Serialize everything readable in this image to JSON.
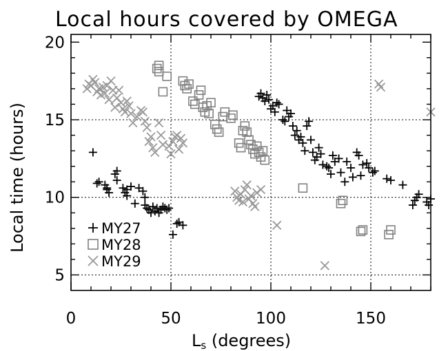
{
  "chart_data": {
    "type": "scatter",
    "title": "Local hours covered by OMEGA",
    "xlabel": "L",
    "xlabel_sub": "s",
    "xlabel_rest": " (degrees)",
    "ylabel": "Local time (hours)",
    "xlim": [
      0,
      180
    ],
    "ylim": [
      4,
      20.5
    ],
    "xticks": [
      0,
      50,
      100,
      150
    ],
    "yticks": [
      5,
      10,
      15,
      20
    ],
    "xgrid": [
      50,
      100,
      150
    ],
    "ygrid": [
      5,
      10,
      15
    ],
    "grid": "dotted",
    "legend_position": "lower-left",
    "series": [
      {
        "name": "MY27",
        "marker": "plus",
        "color": "#000000",
        "points": [
          [
            11,
            12.9
          ],
          [
            14,
            11.0
          ],
          [
            13,
            10.9
          ],
          [
            17,
            10.8
          ],
          [
            18,
            10.6
          ],
          [
            18,
            10.5
          ],
          [
            19,
            10.3
          ],
          [
            22,
            11.5
          ],
          [
            23,
            11.7
          ],
          [
            23,
            11.1
          ],
          [
            26,
            10.6
          ],
          [
            27,
            10.3
          ],
          [
            28,
            10.5
          ],
          [
            28,
            10.1
          ],
          [
            30,
            10.7
          ],
          [
            32,
            9.6
          ],
          [
            34,
            10.6
          ],
          [
            36,
            10.4
          ],
          [
            37,
            10.0
          ],
          [
            37,
            9.5
          ],
          [
            38,
            9.3
          ],
          [
            39,
            9.2
          ],
          [
            40,
            9.0
          ],
          [
            41,
            9.4
          ],
          [
            42,
            9.1
          ],
          [
            43,
            9.3
          ],
          [
            44,
            9.0
          ],
          [
            45,
            9.2
          ],
          [
            46,
            9.4
          ],
          [
            47,
            9.3
          ],
          [
            48,
            9.2
          ],
          [
            49,
            9.3
          ],
          [
            51,
            7.6
          ],
          [
            53,
            8.3
          ],
          [
            54,
            8.4
          ],
          [
            56,
            8.2
          ],
          [
            94,
            16.5
          ],
          [
            95,
            16.7
          ],
          [
            96,
            16.4
          ],
          [
            97,
            16.2
          ],
          [
            98,
            16.6
          ],
          [
            99,
            16.3
          ],
          [
            100,
            15.7
          ],
          [
            101,
            15.9
          ],
          [
            102,
            15.5
          ],
          [
            103,
            16.1
          ],
          [
            104,
            16.0
          ],
          [
            106,
            15.0
          ],
          [
            107,
            14.9
          ],
          [
            108,
            15.6
          ],
          [
            109,
            15.2
          ],
          [
            110,
            15.4
          ],
          [
            111,
            14.6
          ],
          [
            112,
            14.0
          ],
          [
            113,
            14.3
          ],
          [
            114,
            13.7
          ],
          [
            115,
            13.9
          ],
          [
            116,
            13.5
          ],
          [
            117,
            13.0
          ],
          [
            118,
            14.6
          ],
          [
            119,
            14.9
          ],
          [
            120,
            13.7
          ],
          [
            121,
            12.9
          ],
          [
            122,
            12.4
          ],
          [
            123,
            12.6
          ],
          [
            124,
            13.2
          ],
          [
            125,
            12.8
          ],
          [
            126,
            12.1
          ],
          [
            128,
            12.0
          ],
          [
            129,
            11.9
          ],
          [
            130,
            11.5
          ],
          [
            131,
            12.7
          ],
          [
            132,
            12.3
          ],
          [
            134,
            12.5
          ],
          [
            135,
            11.6
          ],
          [
            137,
            11.0
          ],
          [
            138,
            12.3
          ],
          [
            140,
            11.9
          ],
          [
            141,
            11.3
          ],
          [
            143,
            12.9
          ],
          [
            144,
            12.7
          ],
          [
            145,
            11.4
          ],
          [
            146,
            12.1
          ],
          [
            148,
            12.2
          ],
          [
            149,
            11.9
          ],
          [
            151,
            11.6
          ],
          [
            152,
            11.7
          ],
          [
            158,
            11.2
          ],
          [
            160,
            11.1
          ],
          [
            166,
            10.8
          ],
          [
            171,
            9.5
          ],
          [
            172,
            9.8
          ],
          [
            173,
            10.0
          ],
          [
            174,
            10.2
          ],
          [
            178,
            9.7
          ],
          [
            179,
            9.5
          ],
          [
            180,
            9.9
          ]
        ]
      },
      {
        "name": "MY28",
        "marker": "square",
        "color": "#808080",
        "points": [
          [
            43,
            18.3
          ],
          [
            44,
            18.5
          ],
          [
            44,
            18.1
          ],
          [
            46,
            16.8
          ],
          [
            48,
            17.8
          ],
          [
            56,
            17.5
          ],
          [
            57,
            17.2
          ],
          [
            58,
            17.0
          ],
          [
            59,
            17.3
          ],
          [
            61,
            16.2
          ],
          [
            62,
            16.0
          ],
          [
            64,
            16.6
          ],
          [
            65,
            16.9
          ],
          [
            66,
            15.8
          ],
          [
            67,
            15.5
          ],
          [
            68,
            15.9
          ],
          [
            69,
            15.4
          ],
          [
            70,
            16.1
          ],
          [
            72,
            14.7
          ],
          [
            73,
            14.4
          ],
          [
            74,
            14.2
          ],
          [
            76,
            15.2
          ],
          [
            77,
            15.5
          ],
          [
            80,
            15.1
          ],
          [
            81,
            15.3
          ],
          [
            84,
            13.5
          ],
          [
            85,
            13.2
          ],
          [
            86,
            14.3
          ],
          [
            87,
            14.6
          ],
          [
            88,
            14.2
          ],
          [
            89,
            13.7
          ],
          [
            90,
            13.4
          ],
          [
            91,
            13.1
          ],
          [
            92,
            12.8
          ],
          [
            93,
            13.3
          ],
          [
            94,
            12.9
          ],
          [
            95,
            12.6
          ],
          [
            96,
            13.0
          ],
          [
            97,
            12.4
          ],
          [
            116,
            10.6
          ],
          [
            135,
            9.6
          ],
          [
            136,
            9.8
          ],
          [
            145,
            7.8
          ],
          [
            146,
            7.9
          ],
          [
            159,
            7.6
          ],
          [
            160,
            7.9
          ]
        ]
      },
      {
        "name": "MY29",
        "marker": "cross",
        "color": "#999999",
        "points": [
          [
            8,
            17.0
          ],
          [
            9,
            17.3
          ],
          [
            10,
            17.2
          ],
          [
            11,
            17.6
          ],
          [
            12,
            17.4
          ],
          [
            13,
            16.8
          ],
          [
            14,
            17.0
          ],
          [
            15,
            16.6
          ],
          [
            16,
            17.1
          ],
          [
            17,
            16.7
          ],
          [
            18,
            17.2
          ],
          [
            19,
            16.3
          ],
          [
            20,
            17.5
          ],
          [
            21,
            16.9
          ],
          [
            22,
            15.8
          ],
          [
            23,
            16.4
          ],
          [
            24,
            16.9
          ],
          [
            25,
            16.1
          ],
          [
            26,
            15.7
          ],
          [
            27,
            15.5
          ],
          [
            28,
            16.2
          ],
          [
            29,
            15.9
          ],
          [
            30,
            15.4
          ],
          [
            31,
            14.8
          ],
          [
            33,
            15.2
          ],
          [
            35,
            15.6
          ],
          [
            36,
            15.5
          ],
          [
            37,
            14.9
          ],
          [
            38,
            14.5
          ],
          [
            39,
            13.6
          ],
          [
            40,
            13.9
          ],
          [
            41,
            13.2
          ],
          [
            42,
            12.9
          ],
          [
            44,
            14.8
          ],
          [
            45,
            14.0
          ],
          [
            46,
            13.4
          ],
          [
            49,
            13.3
          ],
          [
            50,
            12.8
          ],
          [
            51,
            13.6
          ],
          [
            52,
            13.9
          ],
          [
            53,
            14.0
          ],
          [
            54,
            13.1
          ],
          [
            55,
            13.8
          ],
          [
            56,
            13.5
          ],
          [
            82,
            10.4
          ],
          [
            83,
            10.0
          ],
          [
            84,
            9.8
          ],
          [
            85,
            10.2
          ],
          [
            86,
            9.7
          ],
          [
            87,
            10.5
          ],
          [
            88,
            10.8
          ],
          [
            89,
            9.9
          ],
          [
            90,
            10.1
          ],
          [
            91,
            9.6
          ],
          [
            92,
            9.4
          ],
          [
            93,
            10.3
          ],
          [
            95,
            10.5
          ],
          [
            103,
            8.2
          ],
          [
            127,
            5.6
          ],
          [
            154,
            17.3
          ],
          [
            155,
            17.1
          ],
          [
            180,
            15.5
          ]
        ]
      }
    ]
  }
}
